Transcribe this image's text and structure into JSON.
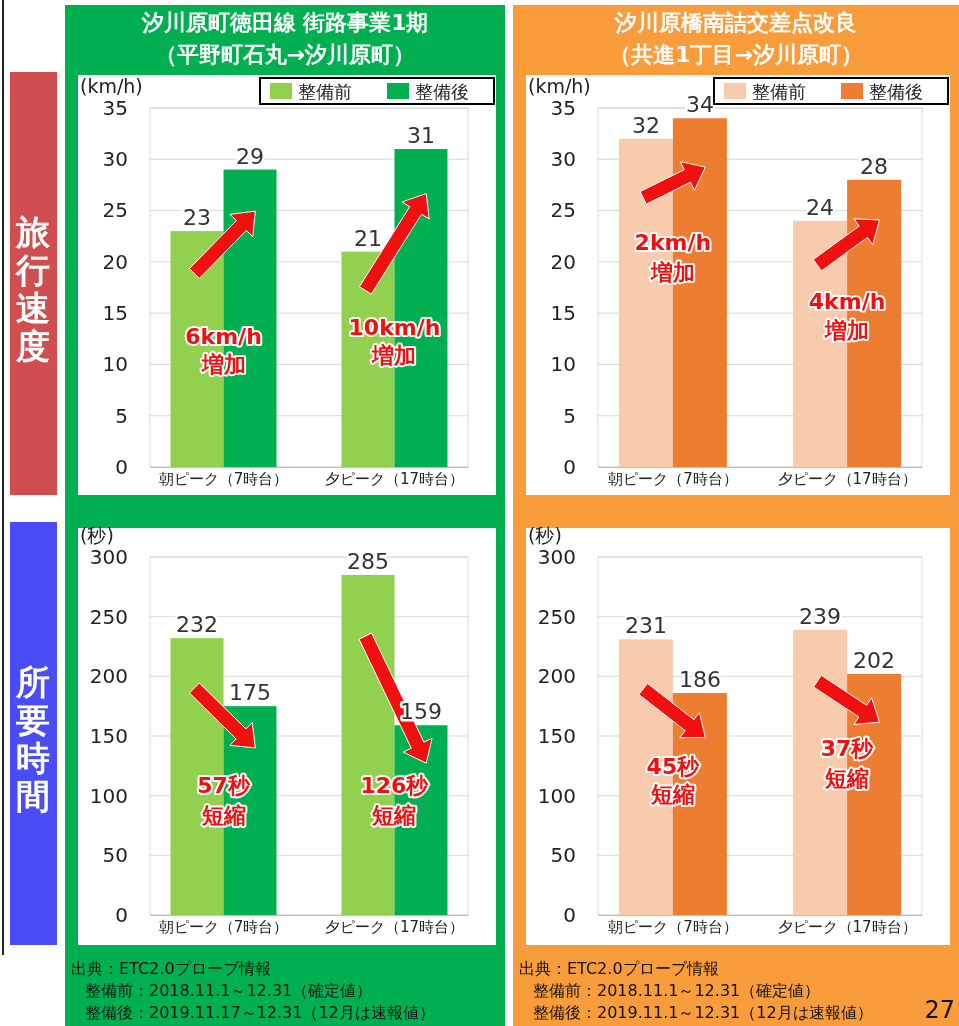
{
  "chart_data": [
    {
      "type": "bar",
      "title": "汐川原町徳田線 街路事業1期（平野町石丸→汐川原町）",
      "ylabel": "(km/h)",
      "categories": [
        "朝ピーク（7時台）",
        "夕ピーク（17時台）"
      ],
      "series": [
        {
          "name": "整備前",
          "color": "#92d050",
          "values": [
            23,
            21
          ]
        },
        {
          "name": "整備後",
          "color": "#00b050",
          "values": [
            29,
            31
          ]
        }
      ],
      "ylim": [
        0,
        35
      ],
      "yticks": [
        0,
        5,
        10,
        15,
        20,
        25,
        30,
        35
      ],
      "grid": "y",
      "legend": "top right",
      "data_labels": true,
      "annotations": [
        "旅行速度",
        {
          "text": "6km/h",
          "x": "朝ピーク（7時台）",
          "y": 12.6
        },
        {
          "text": "増加",
          "x": "朝ピーク（7時台）",
          "y": 9.8
        },
        {
          "text": "10km/h",
          "x": "夕ピーク（17時台）",
          "y": 13.5
        },
        {
          "text": "増加",
          "x": "夕ピーク（17時台）",
          "y": 10.7
        }
      ]
    },
    {
      "type": "bar",
      "title": "汐川原橋南詰交差点改良（共進1丁目→汐川原町）",
      "ylabel": "(km/h)",
      "categories": [
        "朝ピーク（7時台）",
        "夕ピーク（17時台）"
      ],
      "series": [
        {
          "name": "整備前",
          "color": "#f8cbad",
          "values": [
            32,
            24
          ]
        },
        {
          "name": "整備後",
          "color": "#ed7d31",
          "values": [
            34,
            28
          ]
        }
      ],
      "ylim": [
        0,
        35
      ],
      "yticks": [
        0,
        5,
        10,
        15,
        20,
        25,
        30,
        35
      ],
      "grid": "y",
      "legend": "top right",
      "data_labels": true,
      "annotations": [
        {
          "text": "2km/h",
          "x": "朝ピーク（7時台）",
          "y": 21.7
        },
        {
          "text": "増加",
          "x": "朝ピーク（7時台）",
          "y": 18.8
        },
        {
          "text": "4km/h",
          "x": "夕ピーク（17時台）",
          "y": 16
        },
        {
          "text": "増加",
          "x": "夕ピーク（17時台）",
          "y": 13.2
        }
      ]
    },
    {
      "type": "bar",
      "ylabel": "(秒)",
      "categories": [
        "朝ピーク（7時台）",
        "夕ピーク（17時台）"
      ],
      "series": [
        {
          "color": "#92d050",
          "values": [
            232,
            285
          ]
        },
        {
          "color": "#00b050",
          "values": [
            175,
            159
          ]
        }
      ],
      "ylim": [
        0,
        300
      ],
      "yticks": [
        0,
        50,
        100,
        150,
        200,
        250,
        300
      ],
      "grid": "y",
      "data_labels": true,
      "annotations": [
        "所要時間",
        "出典：ETC2.0プローブ情報",
        "整備前：2018.11.1～12.31（確定値）",
        "整備後：2019.11.17～12.31（12月は速報値）",
        {
          "text": "57秒",
          "x": "朝ピーク（7時台）",
          "y": 107
        },
        {
          "text": "短縮",
          "x": "朝ピーク（7時台）",
          "y": 82
        },
        {
          "text": "126秒",
          "x": "夕ピーク（17時台）",
          "y": 107
        },
        {
          "text": "短縮",
          "x": "夕ピーク（17時台）",
          "y": 82
        }
      ]
    },
    {
      "type": "bar",
      "ylabel": "(秒)",
      "categories": [
        "朝ピーク（7時台）",
        "夕ピーク（17時台）"
      ],
      "series": [
        {
          "color": "#f8cbad",
          "values": [
            231,
            239
          ]
        },
        {
          "color": "#ed7d31",
          "values": [
            186,
            202
          ]
        }
      ],
      "ylim": [
        0,
        300
      ],
      "yticks": [
        0,
        50,
        100,
        150,
        200,
        250,
        300
      ],
      "grid": "y",
      "data_labels": true,
      "annotations": [
        "出典：ETC2.0プローブ情報",
        "整備前：2018.11.1～12.31（確定値）",
        "整備後：2019.11.1～12.31（12月は速報値）",
        "27",
        {
          "text": "45秒",
          "x": "朝ピーク（7時台）",
          "y": 123
        },
        {
          "text": "短縮",
          "x": "朝ピーク（7時台）",
          "y": 100
        },
        {
          "text": "37秒",
          "x": "夕ピーク（17時台）",
          "y": 138
        },
        {
          "text": "短縮",
          "x": "夕ピーク（17時台）",
          "y": 113
        }
      ]
    }
  ]
}
